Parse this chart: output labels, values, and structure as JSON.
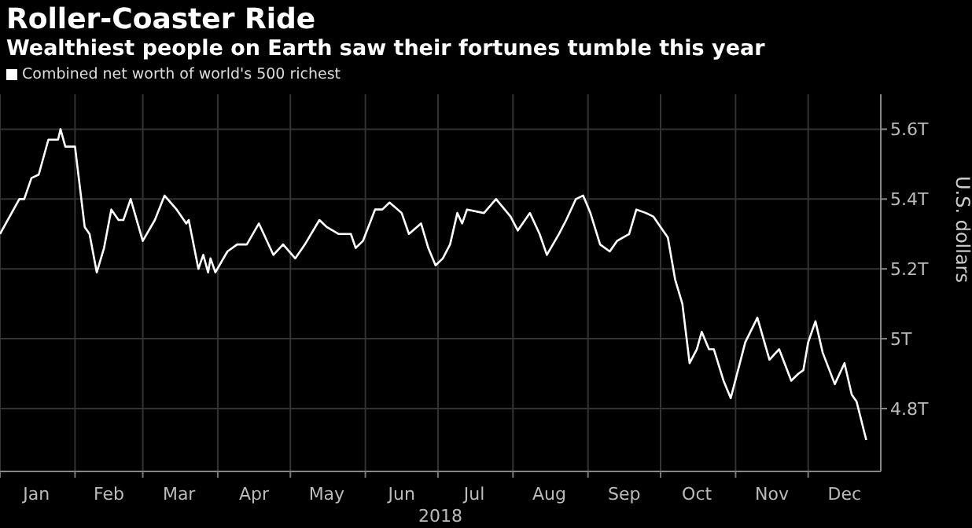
{
  "chart_data": {
    "type": "line",
    "title": "Roller-Coaster Ride",
    "subtitle": "Wealthiest people on Earth saw their fortunes tumble this year",
    "xlabel": "2018",
    "ylabel": "U.S. dollars",
    "legend": "top left",
    "grid": true,
    "x": [
      "2018-01-01",
      "2018-01-09",
      "2018-01-11",
      "2018-01-14",
      "2018-01-17",
      "2018-01-21",
      "2018-01-25",
      "2018-01-26",
      "2018-01-28",
      "2018-02-01",
      "2018-02-05",
      "2018-02-07",
      "2018-02-10",
      "2018-02-13",
      "2018-02-16",
      "2018-02-19",
      "2018-02-21",
      "2018-02-24",
      "2018-03-01",
      "2018-03-06",
      "2018-03-10",
      "2018-03-15",
      "2018-03-19",
      "2018-03-20",
      "2018-03-24",
      "2018-03-26",
      "2018-03-28",
      "2018-03-29",
      "2018-03-31",
      "2018-04-05",
      "2018-04-09",
      "2018-04-13",
      "2018-04-18",
      "2018-04-24",
      "2018-04-28",
      "2018-05-03",
      "2018-05-07",
      "2018-05-13",
      "2018-05-16",
      "2018-05-21",
      "2018-05-26",
      "2018-05-28",
      "2018-05-31",
      "2018-06-05",
      "2018-06-08",
      "2018-06-11",
      "2018-06-16",
      "2018-06-19",
      "2018-06-24",
      "2018-06-27",
      "2018-06-30",
      "2018-07-03",
      "2018-07-06",
      "2018-07-09",
      "2018-07-11",
      "2018-07-13",
      "2018-07-20",
      "2018-07-25",
      "2018-07-31",
      "2018-08-03",
      "2018-08-08",
      "2018-08-12",
      "2018-08-15",
      "2018-08-20",
      "2018-08-23",
      "2018-08-27",
      "2018-08-30",
      "2018-09-02",
      "2018-09-06",
      "2018-09-10",
      "2018-09-13",
      "2018-09-18",
      "2018-09-21",
      "2018-09-25",
      "2018-09-28",
      "2018-10-01",
      "2018-10-04",
      "2018-10-07",
      "2018-10-10",
      "2018-10-13",
      "2018-10-16",
      "2018-10-18",
      "2018-10-21",
      "2018-10-23",
      "2018-10-27",
      "2018-10-30",
      "2018-11-05",
      "2018-11-10",
      "2018-11-15",
      "2018-11-19",
      "2018-11-24",
      "2018-11-27",
      "2018-11-29",
      "2018-12-01",
      "2018-12-04",
      "2018-12-07",
      "2018-12-12",
      "2018-12-16",
      "2018-12-19",
      "2018-12-21",
      "2018-12-25"
    ],
    "series": [
      {
        "name": "Combined net worth of world's 500 richest",
        "color": "#ffffff",
        "values": [
          5.3,
          5.4,
          5.4,
          5.46,
          5.47,
          5.57,
          5.57,
          5.6,
          5.55,
          5.55,
          5.32,
          5.3,
          5.19,
          5.26,
          5.37,
          5.34,
          5.34,
          5.4,
          5.28,
          5.34,
          5.41,
          5.37,
          5.33,
          5.34,
          5.2,
          5.24,
          5.19,
          5.23,
          5.19,
          5.25,
          5.27,
          5.27,
          5.33,
          5.24,
          5.27,
          5.23,
          5.27,
          5.34,
          5.32,
          5.3,
          5.3,
          5.26,
          5.28,
          5.37,
          5.37,
          5.39,
          5.36,
          5.3,
          5.33,
          5.26,
          5.21,
          5.23,
          5.27,
          5.36,
          5.33,
          5.37,
          5.36,
          5.4,
          5.35,
          5.31,
          5.36,
          5.3,
          5.24,
          5.3,
          5.34,
          5.4,
          5.41,
          5.36,
          5.27,
          5.25,
          5.28,
          5.3,
          5.37,
          5.36,
          5.35,
          5.32,
          5.29,
          5.17,
          5.1,
          4.93,
          4.97,
          5.02,
          4.97,
          4.97,
          4.88,
          4.83,
          4.99,
          5.06,
          4.94,
          4.97,
          4.88,
          4.9,
          4.91,
          4.99,
          5.05,
          4.96,
          4.87,
          4.93,
          4.84,
          4.82,
          4.71
        ]
      }
    ],
    "xlim": [
      "2018-01-01",
      "2018-12-31"
    ],
    "xticks": [
      {
        "value": "2018-01-01",
        "label": null
      },
      {
        "value": "2018-01-16",
        "label": "Jan"
      },
      {
        "value": "2018-02-01",
        "label": null
      },
      {
        "value": "2018-02-15",
        "label": "Feb"
      },
      {
        "value": "2018-03-01",
        "label": null
      },
      {
        "value": "2018-03-16",
        "label": "Mar"
      },
      {
        "value": "2018-04-01",
        "label": null
      },
      {
        "value": "2018-04-16",
        "label": "Apr"
      },
      {
        "value": "2018-05-01",
        "label": null
      },
      {
        "value": "2018-05-16",
        "label": "May"
      },
      {
        "value": "2018-06-01",
        "label": null
      },
      {
        "value": "2018-06-16",
        "label": "Jun"
      },
      {
        "value": "2018-07-01",
        "label": null
      },
      {
        "value": "2018-07-16",
        "label": "Jul"
      },
      {
        "value": "2018-08-01",
        "label": null
      },
      {
        "value": "2018-08-16",
        "label": "Aug"
      },
      {
        "value": "2018-09-01",
        "label": null
      },
      {
        "value": "2018-09-16",
        "label": "Sep"
      },
      {
        "value": "2018-10-01",
        "label": null
      },
      {
        "value": "2018-10-16",
        "label": "Oct"
      },
      {
        "value": "2018-11-01",
        "label": null
      },
      {
        "value": "2018-11-16",
        "label": "Nov"
      },
      {
        "value": "2018-12-01",
        "label": null
      },
      {
        "value": "2018-12-16",
        "label": "Dec"
      }
    ],
    "ylim": [
      4.62,
      5.7
    ],
    "yticks": [
      {
        "value": 4.8,
        "label": "4.8T"
      },
      {
        "value": 5,
        "label": "5T"
      },
      {
        "value": 5.2,
        "label": "5.2T"
      },
      {
        "value": 5.4,
        "label": "5.4T"
      },
      {
        "value": 5.6,
        "label": "5.6T"
      }
    ]
  }
}
